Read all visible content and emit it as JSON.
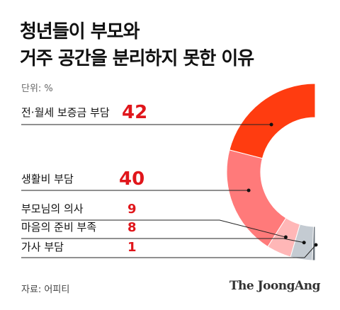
{
  "title": [
    "청년들이 부모와",
    "거주 공간을 분리하지 못한 이유"
  ],
  "unit_label": "단위: %",
  "source": "자료: 어피티",
  "brand": "The JoongAng",
  "colors": {
    "accent_text": "#e0161b",
    "slices": [
      "#ff3c10",
      "#ff7a7a",
      "#ffb7b7",
      "#c4cbd2",
      "#6e7780"
    ]
  },
  "chart_data": {
    "type": "pie",
    "style": "half-donut",
    "categories": [
      "전·월세 보증금 부담",
      "생활비 부담",
      "부모님의 의사",
      "마음의 준비 부족",
      "가사 부담"
    ],
    "values": [
      42,
      40,
      9,
      8,
      1
    ],
    "unit": "%"
  }
}
